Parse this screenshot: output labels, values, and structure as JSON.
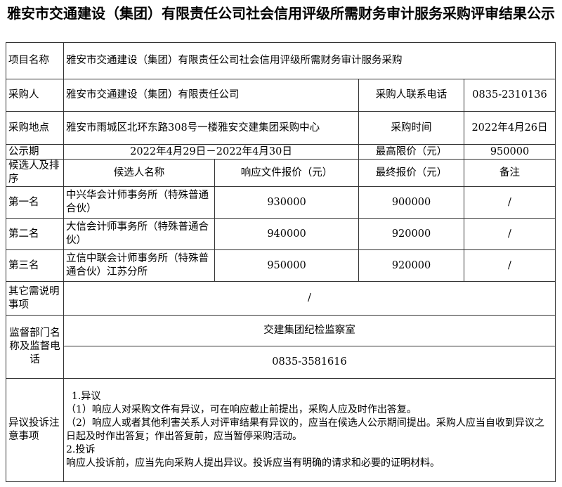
{
  "title": "雅安市交通建设（集团）有限责任公司社会信用评级所需财务审计服务采购评审结果公示",
  "rows": {
    "project_label": "项目名称",
    "project_value": "雅安市交通建设（集团）有限责任公司社会信用评级所需财务审计服务采购",
    "buyer_label": "采购人",
    "buyer_value": "雅安市交通建设（集团）有限责任公司",
    "buyer_phone_label": "采购人联系电话",
    "buyer_phone_value": "0835-2310136",
    "location_label": "采购地点",
    "location_value": "雅安市雨城区北环东路308号一楼雅安交建集团采购中心",
    "time_label": "采购时间",
    "time_value": "2022年4月26日",
    "period_label": "公示期",
    "period_value": "2022年4月29日－2022年4月30日",
    "max_price_label": "最高限价（元）",
    "max_price_value": "950000"
  },
  "candidates": {
    "headers": [
      "候选人及排序",
      "候选人名称",
      "响应文件报价（元）",
      "最终报价（元）",
      "备注"
    ],
    "items": [
      {
        "rank": "第一名",
        "name": "中兴华会计师事务所（特殊普通合伙）",
        "bid": "930000",
        "final": "900000",
        "note": "/"
      },
      {
        "rank": "第二名",
        "name": "大信会计师事务所（特殊普通合伙）",
        "bid": "940000",
        "final": "920000",
        "note": "/"
      },
      {
        "rank": "第三名",
        "name": "立信中联会计师事务所（特殊普通合伙）江苏分所",
        "bid": "950000",
        "final": "920000",
        "note": "/"
      }
    ]
  },
  "other": {
    "label": "其它需说明事项",
    "value": "/"
  },
  "supervision": {
    "label": "监督部门名称及监督电话",
    "dept": "交建集团纪检监察室",
    "phone": "0835-3581616"
  },
  "complaint": {
    "label": "异议投诉注意事项",
    "lines": [
      "1.异议",
      "（1）响应人对采购文件有异议，可在响应截止前提出，采购人应及时作出答复。",
      "（2）响应人或者其他利害关系人对评审结果有异议的，应当在候选人公示期间提出。采购人应当自收到异议之日起及时作出答复；作出答复前，应当暂停采购活动。",
      "2.投诉",
      "响应人投诉前，应当先向采购人提出异议。投诉应当有明确的请求和必要的证明材料。"
    ]
  }
}
